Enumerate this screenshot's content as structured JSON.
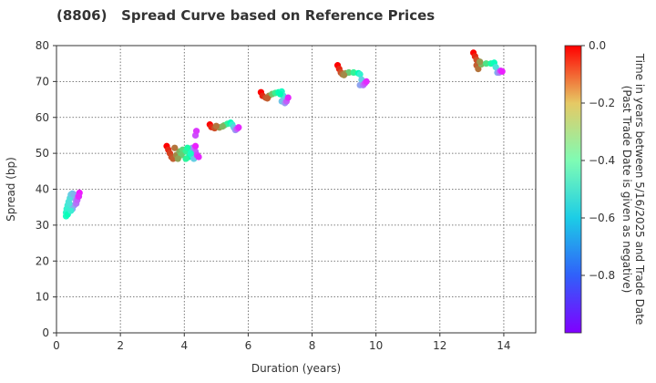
{
  "chart_data": {
    "type": "scatter",
    "title": "(8806)   Spread Curve based on Reference Prices",
    "xlabel": "Duration (years)",
    "ylabel": "Spread (bp)",
    "xlim": [
      0,
      15
    ],
    "ylim": [
      0,
      80
    ],
    "xticks": [
      "0",
      "2",
      "4",
      "6",
      "8",
      "10",
      "12",
      "14"
    ],
    "yticks": [
      "0",
      "10",
      "20",
      "30",
      "40",
      "50",
      "60",
      "70",
      "80"
    ],
    "grid": true,
    "colorbar": {
      "label_line1": "Time in years between 5/16/2025 and Trade Date",
      "label_line2": "(Past Trade Date is given as negative)",
      "range": [
        -1.0,
        0.0
      ],
      "ticks": [
        "0.0",
        "−0.2",
        "−0.4",
        "−0.6",
        "−0.8"
      ],
      "tick_values": [
        0.0,
        -0.2,
        -0.4,
        -0.6,
        -0.8
      ],
      "colormap": "rainbow"
    },
    "series": [
      {
        "points": [
          [
            0.3,
            32.5,
            -0.55
          ],
          [
            0.3,
            33.5,
            -0.58
          ],
          [
            0.32,
            34.5,
            -0.6
          ],
          [
            0.35,
            35.5,
            -0.62
          ],
          [
            0.38,
            36.5,
            -0.64
          ],
          [
            0.42,
            37.5,
            -0.66
          ],
          [
            0.45,
            38.5,
            -0.7
          ],
          [
            0.5,
            38.8,
            -0.72
          ],
          [
            0.55,
            38.5,
            -0.75
          ],
          [
            0.6,
            37,
            -0.78
          ],
          [
            0.55,
            35.5,
            -0.8
          ],
          [
            0.5,
            34.5,
            -0.76
          ],
          [
            0.4,
            36,
            -0.65
          ],
          [
            0.35,
            33,
            -0.52
          ],
          [
            0.62,
            36,
            -0.85
          ],
          [
            0.65,
            37,
            -0.88
          ],
          [
            0.68,
            38,
            -0.92
          ],
          [
            0.72,
            39,
            -0.97
          ],
          [
            0.7,
            38,
            -0.95
          ],
          [
            0.45,
            34,
            -0.62
          ]
        ]
      },
      {
        "points": [
          [
            3.45,
            52,
            0.0
          ],
          [
            3.5,
            51,
            -0.05
          ],
          [
            3.55,
            50,
            -0.08
          ],
          [
            3.6,
            49,
            -0.1
          ],
          [
            3.65,
            48.5,
            -0.12
          ],
          [
            3.75,
            49.5,
            -0.18
          ],
          [
            3.85,
            50.5,
            -0.25
          ],
          [
            3.95,
            51,
            -0.32
          ],
          [
            4.05,
            50.5,
            -0.4
          ],
          [
            4.15,
            49,
            -0.48
          ],
          [
            4.05,
            48.5,
            -0.42
          ],
          [
            3.9,
            49.5,
            -0.3
          ],
          [
            3.7,
            51.5,
            -0.15
          ],
          [
            4.25,
            49.5,
            -0.6
          ],
          [
            4.3,
            48.5,
            -0.7
          ],
          [
            4.25,
            51.5,
            -0.82
          ],
          [
            4.35,
            50.5,
            -0.88
          ],
          [
            4.4,
            49.5,
            -0.92
          ],
          [
            4.45,
            49,
            -0.95
          ],
          [
            4.35,
            52,
            -0.96
          ],
          [
            4.35,
            55,
            -0.9
          ],
          [
            4.38,
            56.2,
            -0.93
          ],
          [
            4.1,
            51.5,
            -0.45
          ],
          [
            3.8,
            48.5,
            -0.22
          ],
          [
            4.2,
            50,
            -0.55
          ]
        ]
      },
      {
        "points": [
          [
            4.8,
            58,
            0.0
          ],
          [
            4.85,
            57.3,
            -0.05
          ],
          [
            4.95,
            57,
            -0.1
          ],
          [
            5.1,
            57.2,
            -0.2
          ],
          [
            5.25,
            57.8,
            -0.3
          ],
          [
            5.35,
            58.2,
            -0.4
          ],
          [
            5.45,
            58.5,
            -0.5
          ],
          [
            5.5,
            58,
            -0.6
          ],
          [
            5.55,
            57.2,
            -0.7
          ],
          [
            5.6,
            56.5,
            -0.8
          ],
          [
            5.65,
            56.8,
            -0.88
          ],
          [
            5.7,
            57.2,
            -0.95
          ],
          [
            5.2,
            57.5,
            -0.25
          ],
          [
            5.0,
            57.6,
            -0.15
          ]
        ]
      },
      {
        "points": [
          [
            6.4,
            67,
            0.0
          ],
          [
            6.45,
            66,
            -0.05
          ],
          [
            6.55,
            65.5,
            -0.1
          ],
          [
            6.65,
            66,
            -0.18
          ],
          [
            6.75,
            66.5,
            -0.28
          ],
          [
            6.85,
            66.8,
            -0.38
          ],
          [
            6.95,
            67,
            -0.48
          ],
          [
            7.05,
            67.2,
            -0.55
          ],
          [
            7.1,
            66,
            -0.65
          ],
          [
            7.05,
            64.5,
            -0.72
          ],
          [
            7.15,
            64,
            -0.8
          ],
          [
            7.2,
            64.5,
            -0.88
          ],
          [
            7.25,
            65.5,
            -0.95
          ],
          [
            6.6,
            65.3,
            -0.12
          ],
          [
            7.0,
            66.5,
            -0.5
          ]
        ]
      },
      {
        "points": [
          [
            8.8,
            74.5,
            0.0
          ],
          [
            8.85,
            73.5,
            -0.05
          ],
          [
            8.9,
            72.5,
            -0.1
          ],
          [
            8.95,
            72,
            -0.15
          ],
          [
            9.05,
            72.3,
            -0.2
          ],
          [
            9.15,
            72.5,
            -0.3
          ],
          [
            9.3,
            72.5,
            -0.4
          ],
          [
            9.45,
            72.3,
            -0.5
          ],
          [
            9.5,
            72,
            -0.6
          ],
          [
            9.55,
            70.5,
            -0.7
          ],
          [
            9.5,
            69,
            -0.78
          ],
          [
            9.6,
            69,
            -0.85
          ],
          [
            9.65,
            69.5,
            -0.9
          ],
          [
            9.7,
            70,
            -0.95
          ],
          [
            9.0,
            71.8,
            -0.18
          ]
        ]
      },
      {
        "points": [
          [
            13.05,
            78,
            0.0
          ],
          [
            13.1,
            77,
            -0.05
          ],
          [
            13.15,
            76,
            -0.1
          ],
          [
            13.15,
            74.5,
            -0.12
          ],
          [
            13.2,
            73.5,
            -0.15
          ],
          [
            13.3,
            74.8,
            -0.25
          ],
          [
            13.45,
            75,
            -0.35
          ],
          [
            13.6,
            75,
            -0.45
          ],
          [
            13.7,
            75.2,
            -0.52
          ],
          [
            13.75,
            74,
            -0.65
          ],
          [
            13.8,
            72.5,
            -0.75
          ],
          [
            13.85,
            72.5,
            -0.82
          ],
          [
            13.9,
            73,
            -0.92
          ],
          [
            13.95,
            72.8,
            -0.96
          ],
          [
            13.25,
            75.5,
            -0.2
          ]
        ]
      }
    ]
  }
}
